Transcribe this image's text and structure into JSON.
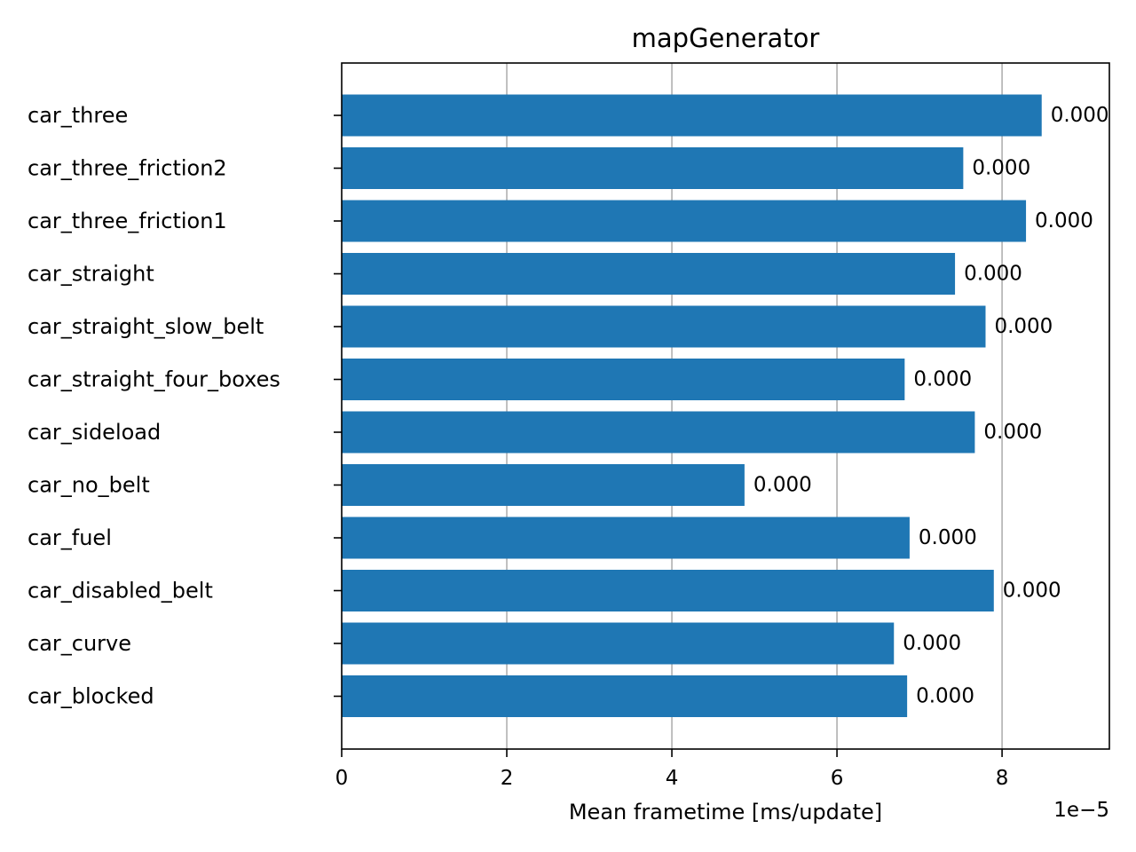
{
  "chart_data": {
    "type": "bar",
    "orientation": "horizontal",
    "title": "mapGenerator",
    "xlabel": "Mean frametime [ms/update]",
    "ylabel": "",
    "x_offset_label": "1e−5",
    "x_scale_exponent": -5,
    "xlim": [
      0,
      9.3e-05
    ],
    "xticks": [
      0,
      2e-05,
      4e-05,
      6e-05,
      8e-05
    ],
    "xtick_labels": [
      "0",
      "2",
      "4",
      "6",
      "8"
    ],
    "grid": "x",
    "bar_color": "#1f77b4",
    "categories": [
      "car_three",
      "car_three_friction2",
      "car_three_friction1",
      "car_straight",
      "car_straight_slow_belt",
      "car_straight_four_boxes",
      "car_sideload",
      "car_no_belt",
      "car_fuel",
      "car_disabled_belt",
      "car_curve",
      "car_blocked"
    ],
    "values": [
      8.48e-05,
      7.53e-05,
      8.29e-05,
      7.43e-05,
      7.8e-05,
      6.82e-05,
      7.67e-05,
      4.88e-05,
      6.88e-05,
      7.9e-05,
      6.69e-05,
      6.85e-05
    ],
    "data_labels": [
      "0.000",
      "0.000",
      "0.000",
      "0.000",
      "0.000",
      "0.000",
      "0.000",
      "0.000",
      "0.000",
      "0.000",
      "0.000",
      "0.000"
    ]
  }
}
